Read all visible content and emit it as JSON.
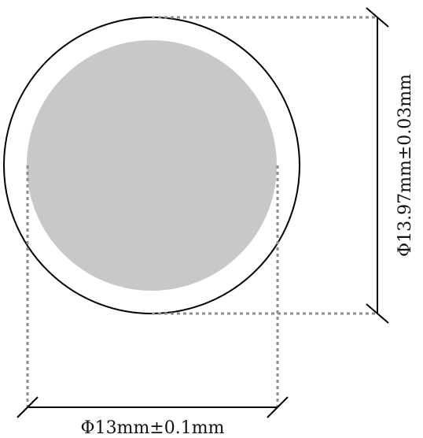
{
  "diagram": {
    "outer_dimension_label": "Φ13.97mm±0.03mm",
    "inner_dimension_label": "Φ13mm±0.1mm"
  },
  "colors": {
    "inner_fill": "#c8c8c8",
    "outer_stroke": "#000000",
    "guide_line": "#8c8c8c",
    "dimension_line": "#000000"
  }
}
